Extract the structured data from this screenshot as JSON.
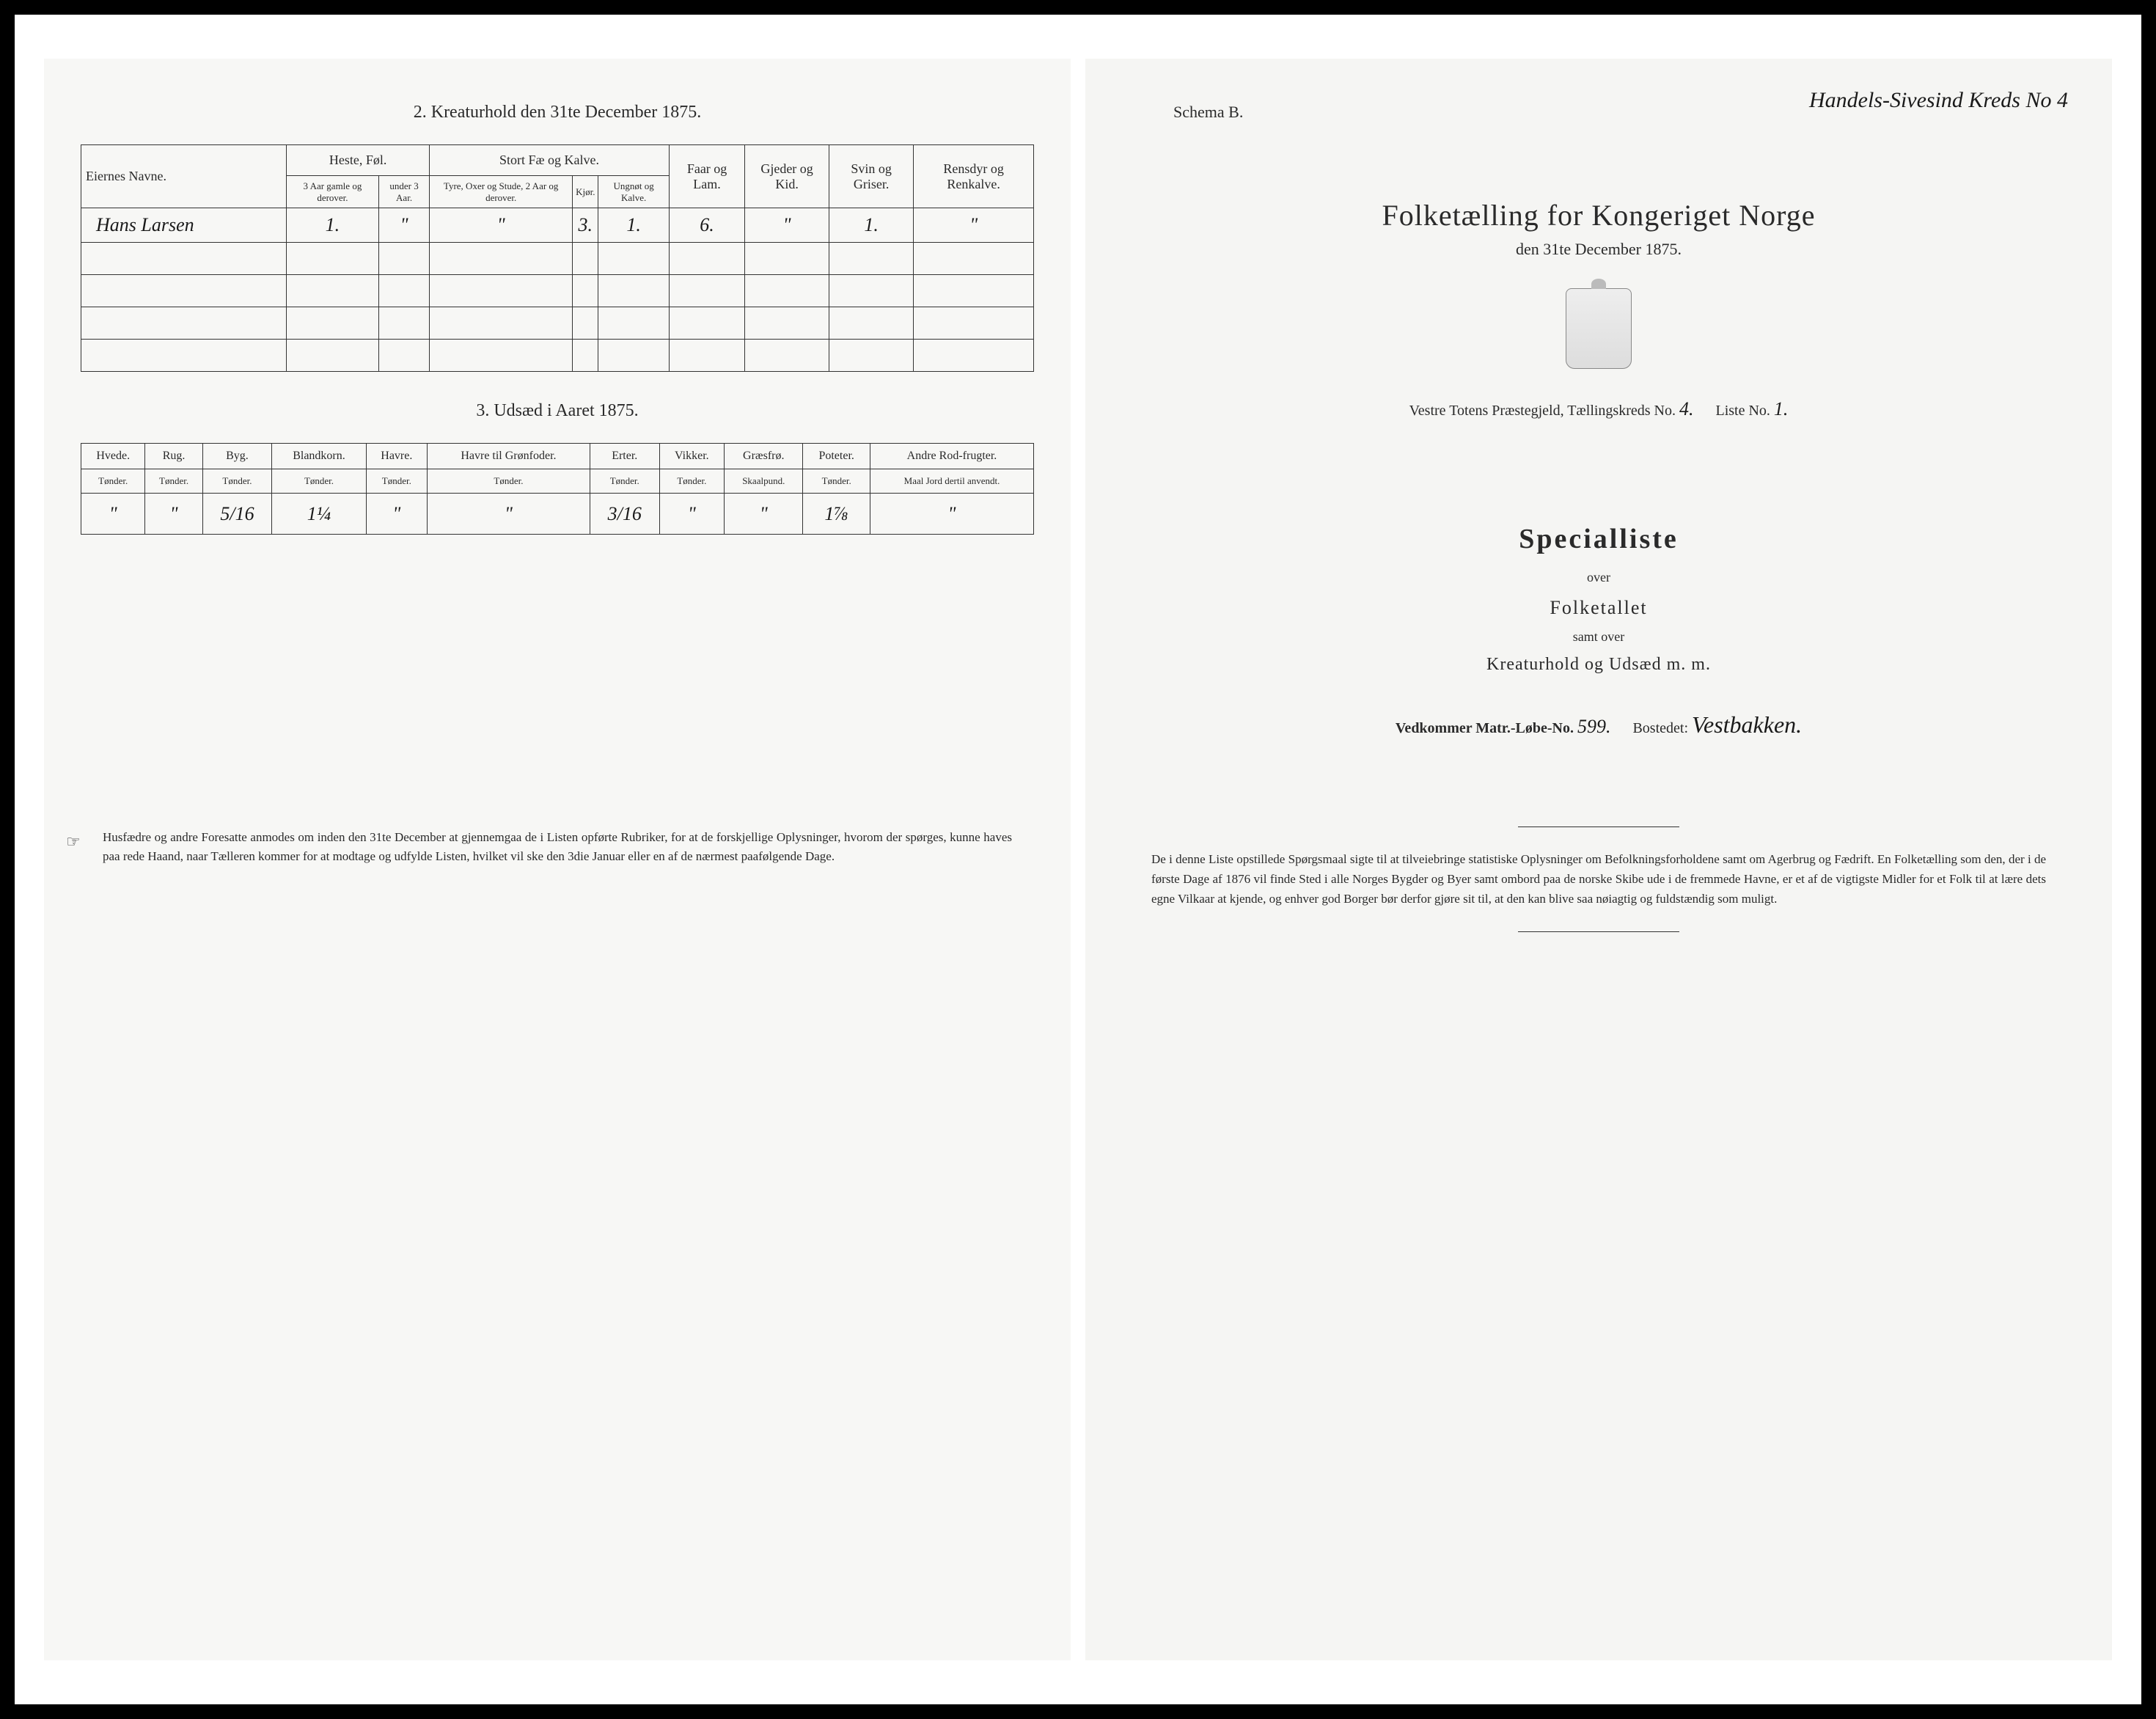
{
  "left_page": {
    "section2": {
      "title": "2.  Kreaturhold den 31te December 1875.",
      "owner_header": "Eiernes Navne.",
      "col_groups": {
        "heste": "Heste, Føl.",
        "stort_fae": "Stort Fæ og Kalve.",
        "faar": "Faar og Lam.",
        "gjeder": "Gjeder og Kid.",
        "svin": "Svin og Griser.",
        "rensdyr": "Rensdyr og Renkalve."
      },
      "sub_headers": {
        "heste_3plus": "3 Aar gamle og derover.",
        "heste_under3": "under 3 Aar.",
        "tyre_oxer": "Tyre, Oxer og Stude, 2 Aar og derover.",
        "kjor": "Kjør.",
        "ungnot": "Ungnøt og Kalve."
      },
      "row1": {
        "owner": "Hans Larsen",
        "heste_3plus": "1.",
        "heste_under3": "\"",
        "tyre_oxer": "\"",
        "kjor": "3.",
        "ungnot": "1.",
        "faar": "6.",
        "gjeder": "\"",
        "svin": "1.",
        "rensdyr": "\""
      }
    },
    "section3": {
      "title": "3.  Udsæd i Aaret 1875.",
      "headers": {
        "hvede": "Hvede.",
        "rug": "Rug.",
        "byg": "Byg.",
        "blandkorn": "Blandkorn.",
        "havre": "Havre.",
        "havre_gron": "Havre til Grønfoder.",
        "erter": "Erter.",
        "vikker": "Vikker.",
        "graesfro": "Græsfrø.",
        "poteter": "Poteter.",
        "andre": "Andre Rod-frugter."
      },
      "sub_label_tonder": "Tønder.",
      "sub_label_skaalpund": "Skaalpund.",
      "sub_label_andre": "Maal Jord dertil anvendt.",
      "row": {
        "hvede": "\"",
        "rug": "\"",
        "byg": "5/16",
        "blandkorn": "1¼",
        "havre": "\"",
        "havre_gron": "\"",
        "erter": "3/16",
        "vikker": "\"",
        "graesfro": "\"",
        "poteter": "1⅞",
        "andre": "\""
      }
    },
    "footer_note": "Husfædre og andre Foresatte anmodes om inden den 31te December at gjennemgaa de i Listen opførte Rubriker, for at de forskjellige Oplysninger, hvorom der spørges, kunne haves paa rede Haand, naar Tælleren kommer for at modtage og udfylde Listen, hvilket vil ske den 3die Januar eller en af de nærmest paafølgende Dage."
  },
  "right_page": {
    "schema_label": "Schema B.",
    "top_handwriting": "Handels-Sivesind Kreds No 4",
    "main_title": "Folketælling for Kongeriget Norge",
    "main_subtitle": "den 31te December 1875.",
    "parish_prefix": "Vestre Totens",
    "parish_label": " Præstegjeld, Tællingskreds No. ",
    "kreds_no": "4.",
    "liste_label": "Liste No. ",
    "liste_no": "1.",
    "specialliste": "Specialliste",
    "over": "over",
    "folketallet": "Folketallet",
    "samt_over": "samt over",
    "kreaturhold_line": "Kreaturhold og Udsæd m. m.",
    "matr_label": "Vedkommer Matr.-Løbe-No. ",
    "matr_no": "599.",
    "bosted_label": "Bostedet: ",
    "bosted_value": "Vestbakken.",
    "bottom_para": "De i denne Liste opstillede Spørgsmaal sigte til at tilveiebringe statistiske Oplysninger om Befolkningsforholdene samt om Agerbrug og Fædrift.  En Folketælling som den, der i de første Dage af 1876 vil finde Sted i alle Norges Bygder og Byer samt ombord paa de norske Skibe ude i de fremmede Havne, er et af de vigtigste Midler for et Folk til at lære dets egne Vilkaar at kjende, og enhver god Borger bør derfor gjøre sit til, at den kan blive saa nøiagtig og fuldstændig som muligt."
  },
  "colors": {
    "paper": "#f5f5f3",
    "ink": "#2a2a2a",
    "border": "#333333",
    "frame_bg": "#000000"
  }
}
